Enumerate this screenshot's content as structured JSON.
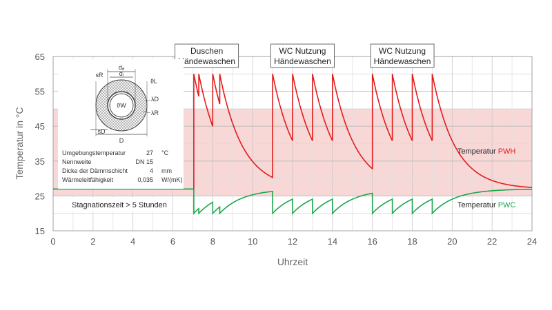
{
  "chart_data": {
    "type": "line",
    "xlabel": "Uhrzeit",
    "ylabel": "Temperatur in °C",
    "xlim": [
      0,
      24
    ],
    "ylim": [
      15,
      65
    ],
    "xticks": [
      "0",
      "2",
      "4",
      "6",
      "8",
      "10",
      "12",
      "14",
      "16",
      "18",
      "20",
      "22",
      "24"
    ],
    "yticks": [
      "15",
      "25",
      "35",
      "45",
      "55",
      "65"
    ],
    "grid": true,
    "shaded_band": {
      "from": 25,
      "to": 50,
      "color": "#f8d7d7"
    },
    "series": [
      {
        "name": "Temperatur PWH",
        "color": "#e31b1b",
        "ambient": 27,
        "peak": 60,
        "cooling_time_constant_h": 1.15,
        "tap_events_h": [
          7.05,
          7.3,
          8.0,
          8.35,
          11.0,
          12.0,
          13.0,
          14.0,
          16.0,
          17.0,
          18.0,
          19.0
        ]
      },
      {
        "name": "Temperatur PWC",
        "color": "#1aa64b",
        "ambient": 27,
        "low": 20,
        "warming_time_constant_h": 1.15,
        "tap_events_h": [
          7.05,
          7.3,
          8.0,
          8.35,
          11.0,
          12.0,
          13.0,
          14.0,
          16.0,
          17.0,
          18.0,
          19.0
        ]
      }
    ],
    "series_labels": [
      {
        "prefix": "Temperatur ",
        "highlight": "PWH",
        "color": "#e31b1b"
      },
      {
        "prefix": "Temperatur ",
        "highlight": "PWC",
        "color": "#1aa64b"
      }
    ],
    "annotations": [
      {
        "line1": "Duschen",
        "line2": "Händewaschen",
        "x": 7.7
      },
      {
        "line1": "WC Nutzung",
        "line2": "Händewaschen",
        "x": 12.5
      },
      {
        "line1": "WC Nutzung",
        "line2": "Händewaschen",
        "x": 17.5
      }
    ],
    "stagnation_label": "Stagnationszeit > 5 Stunden",
    "inset": {
      "diagram_labels": [
        "dₐ",
        "dᵢ",
        "sR",
        "ϑL",
        "ϑW",
        "λD",
        "λR",
        "sD",
        "D"
      ],
      "parameters": [
        {
          "name": "Umgebungstemperatur",
          "value": "27",
          "unit": "°C"
        },
        {
          "name": "Nennweite",
          "value": "DN 15",
          "unit": ""
        },
        {
          "name": "Dicke der Dämmschicht",
          "value": "4",
          "unit": "mm"
        },
        {
          "name": "Wärmeleitfähigkeit",
          "value": "0,035",
          "unit": "W/(mK)"
        }
      ]
    }
  }
}
